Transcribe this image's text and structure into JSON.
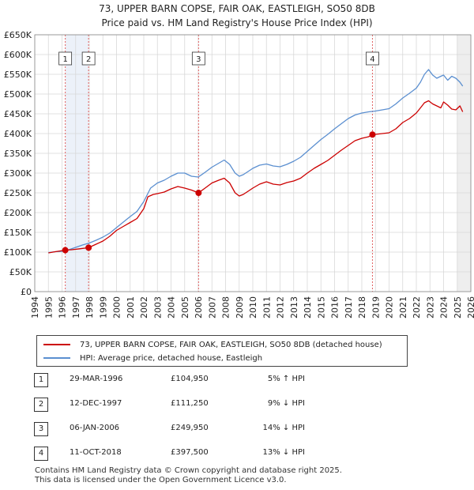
{
  "title_line1": "73, UPPER BARN COPSE, FAIR OAK, EASTLEIGH, SO50 8DB",
  "title_line2": "Price paid vs. HM Land Registry's House Price Index (HPI)",
  "chart_data": {
    "type": "line",
    "xlim": [
      1994,
      2026
    ],
    "ylim": [
      0,
      650000
    ],
    "y_ticks": [
      0,
      50000,
      100000,
      150000,
      200000,
      250000,
      300000,
      350000,
      400000,
      450000,
      500000,
      550000,
      600000,
      650000
    ],
    "y_tick_labels": [
      "£0",
      "£50K",
      "£100K",
      "£150K",
      "£200K",
      "£250K",
      "£300K",
      "£350K",
      "£400K",
      "£450K",
      "£500K",
      "£550K",
      "£600K",
      "£650K"
    ],
    "x_ticks": [
      1994,
      1995,
      1996,
      1997,
      1998,
      1999,
      2000,
      2001,
      2002,
      2003,
      2004,
      2005,
      2006,
      2007,
      2008,
      2009,
      2010,
      2011,
      2012,
      2013,
      2014,
      2015,
      2016,
      2017,
      2018,
      2019,
      2020,
      2021,
      2022,
      2023,
      2024,
      2025,
      2026
    ],
    "series": [
      {
        "name": "73, UPPER BARN COPSE, FAIR OAK, EASTLEIGH, SO50 8DB (detached house)",
        "color": "#cc0000",
        "x": [
          1995.0,
          1995.5,
          1996.24,
          1996.7,
          1997.3,
          1997.95,
          1998.5,
          1999.0,
          1999.5,
          2000.0,
          2000.5,
          2001.0,
          2001.5,
          2002.0,
          2002.3,
          2002.7,
          2003.0,
          2003.5,
          2004.0,
          2004.5,
          2005.0,
          2005.5,
          2006.02,
          2006.5,
          2007.0,
          2007.5,
          2007.9,
          2008.3,
          2008.7,
          2009.0,
          2009.3,
          2009.7,
          2010.0,
          2010.5,
          2011.0,
          2011.5,
          2012.0,
          2012.5,
          2013.0,
          2013.5,
          2014.0,
          2014.5,
          2015.0,
          2015.5,
          2016.0,
          2016.5,
          2017.0,
          2017.5,
          2018.0,
          2018.5,
          2018.78,
          2019.0,
          2019.5,
          2020.0,
          2020.5,
          2021.0,
          2021.5,
          2022.0,
          2022.3,
          2022.6,
          2022.9,
          2023.2,
          2023.5,
          2023.8,
          2024.0,
          2024.3,
          2024.6,
          2024.9,
          2025.2,
          2025.4
        ],
        "y": [
          98000,
          101000,
          104950,
          106000,
          108500,
          111250,
          120000,
          128000,
          140000,
          155000,
          165000,
          175000,
          185000,
          210000,
          240000,
          246000,
          248000,
          252000,
          260000,
          266000,
          262000,
          257000,
          249950,
          262000,
          275000,
          282000,
          287000,
          275000,
          250000,
          242000,
          246000,
          255000,
          262000,
          272000,
          278000,
          272000,
          270000,
          276000,
          280000,
          287000,
          300000,
          312000,
          322000,
          332000,
          345000,
          358000,
          370000,
          382000,
          388000,
          392000,
          397500,
          398000,
          400000,
          402000,
          412000,
          428000,
          438000,
          452000,
          465000,
          478000,
          483000,
          475000,
          470000,
          465000,
          480000,
          472000,
          462000,
          460000,
          470000,
          455000
        ]
      },
      {
        "name": "HPI: Average price, detached house, Eastleigh",
        "color": "#5b8fd0",
        "x": [
          1995.0,
          1995.5,
          1996.0,
          1996.5,
          1997.0,
          1997.5,
          1998.0,
          1998.5,
          1999.0,
          1999.5,
          2000.0,
          2000.5,
          2001.0,
          2001.5,
          2002.0,
          2002.5,
          2003.0,
          2003.5,
          2004.0,
          2004.5,
          2005.0,
          2005.5,
          2006.0,
          2006.5,
          2007.0,
          2007.5,
          2007.9,
          2008.3,
          2008.7,
          2009.0,
          2009.3,
          2009.7,
          2010.0,
          2010.5,
          2011.0,
          2011.5,
          2012.0,
          2012.5,
          2013.0,
          2013.5,
          2014.0,
          2014.5,
          2015.0,
          2015.5,
          2016.0,
          2016.5,
          2017.0,
          2017.5,
          2018.0,
          2018.5,
          2019.0,
          2019.5,
          2020.0,
          2020.5,
          2021.0,
          2021.5,
          2022.0,
          2022.3,
          2022.6,
          2022.9,
          2023.2,
          2023.5,
          2023.8,
          2024.0,
          2024.3,
          2024.6,
          2024.9,
          2025.2,
          2025.4
        ],
        "y": [
          99000,
          101000,
          102000,
          106000,
          112000,
          118000,
          123000,
          130000,
          138000,
          148000,
          162000,
          176000,
          190000,
          203000,
          228000,
          262000,
          275000,
          282000,
          292000,
          300000,
          300000,
          292000,
          290000,
          302000,
          315000,
          325000,
          333000,
          322000,
          300000,
          292000,
          296000,
          305000,
          312000,
          320000,
          323000,
          318000,
          316000,
          322000,
          330000,
          340000,
          355000,
          370000,
          385000,
          398000,
          412000,
          425000,
          438000,
          447000,
          452000,
          455000,
          457000,
          460000,
          463000,
          475000,
          490000,
          502000,
          515000,
          530000,
          550000,
          562000,
          548000,
          540000,
          545000,
          548000,
          535000,
          545000,
          540000,
          530000,
          520000
        ]
      }
    ],
    "sales": [
      {
        "num": "1",
        "x": 1996.24,
        "y": 104950
      },
      {
        "num": "2",
        "x": 1997.95,
        "y": 111250
      },
      {
        "num": "3",
        "x": 2006.02,
        "y": 249950
      },
      {
        "num": "4",
        "x": 2018.78,
        "y": 397500
      }
    ]
  },
  "legend": {
    "property_label": "73, UPPER BARN COPSE, FAIR OAK, EASTLEIGH, SO50 8DB (detached house)",
    "hpi_label": "HPI: Average price, detached house, Eastleigh"
  },
  "sales_table": [
    {
      "num": "1",
      "date": "29-MAR-1996",
      "price": "£104,950",
      "hpi": "5% ↑ HPI"
    },
    {
      "num": "2",
      "date": "12-DEC-1997",
      "price": "£111,250",
      "hpi": "9% ↓ HPI"
    },
    {
      "num": "3",
      "date": "06-JAN-2006",
      "price": "£249,950",
      "hpi": "14% ↓ HPI"
    },
    {
      "num": "4",
      "date": "11-OCT-2018",
      "price": "£397,500",
      "hpi": "13% ↓ HPI"
    }
  ],
  "footer": {
    "line1": "Contains HM Land Registry data © Crown copyright and database right 2025.",
    "line2": "This data is licensed under the Open Government Licence v3.0."
  }
}
